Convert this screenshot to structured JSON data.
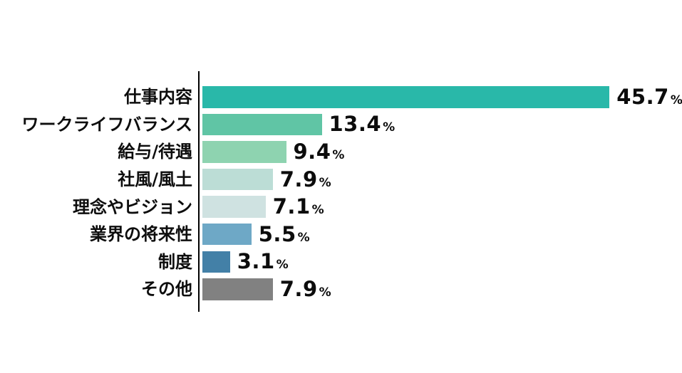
{
  "chart_data": {
    "type": "bar",
    "orientation": "horizontal",
    "title": "",
    "unit": "%",
    "categories": [
      "仕事内容",
      "ワークライフバランス",
      "給与/待遇",
      "社風/風土",
      "理念やビジョン",
      "業界の将来性",
      "制度",
      "その他"
    ],
    "values": [
      45.7,
      13.4,
      9.4,
      7.9,
      7.1,
      5.5,
      3.1,
      7.9
    ],
    "bar_colors": [
      "#29b8a9",
      "#60c5a5",
      "#8ed3b0",
      "#bcddd6",
      "#cfe2e1",
      "#6ea8c6",
      "#4380a7",
      "#818181"
    ],
    "xlim": [
      0,
      45.7
    ],
    "axis_color": "#000000",
    "background": "#ffffff",
    "grid": "off",
    "legend": "none"
  }
}
